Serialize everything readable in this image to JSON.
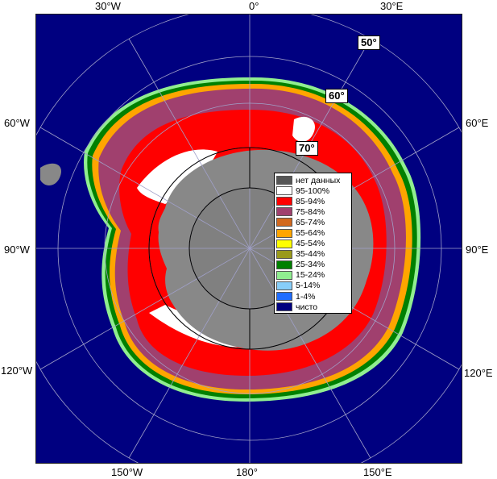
{
  "longitude_labels": {
    "top": [
      "30°W",
      "0°",
      "30°E"
    ],
    "left": [
      "60°W",
      "90°W",
      "120°W"
    ],
    "right": [
      "60°E",
      "90°E",
      "120°E"
    ],
    "bottom": [
      "150°W",
      "180°",
      "150°E"
    ]
  },
  "latitude_labels": [
    "50°",
    "60°",
    "70°"
  ],
  "legend": {
    "items": [
      {
        "label": "нет данных",
        "color": "#555555"
      },
      {
        "label": "95-100%",
        "color": "#ffffff"
      },
      {
        "label": "85-94%",
        "color": "#ff0000"
      },
      {
        "label": "75-84%",
        "color": "#a0406e"
      },
      {
        "label": "65-74%",
        "color": "#d2691e"
      },
      {
        "label": "55-64%",
        "color": "#ffa500"
      },
      {
        "label": "45-54%",
        "color": "#ffff00"
      },
      {
        "label": "35-44%",
        "color": "#9a9a1a"
      },
      {
        "label": "25-34%",
        "color": "#008000"
      },
      {
        "label": "15-24%",
        "color": "#90ee90"
      },
      {
        "label": "5-14%",
        "color": "#87cefa"
      },
      {
        "label": "1-4%",
        "color": "#1e6cff"
      },
      {
        "label": "чисто",
        "color": "#000080"
      }
    ]
  },
  "colors": {
    "ocean": "#000080",
    "land": "#888888",
    "grid": "#a0a0c8",
    "frame": "#000000"
  }
}
